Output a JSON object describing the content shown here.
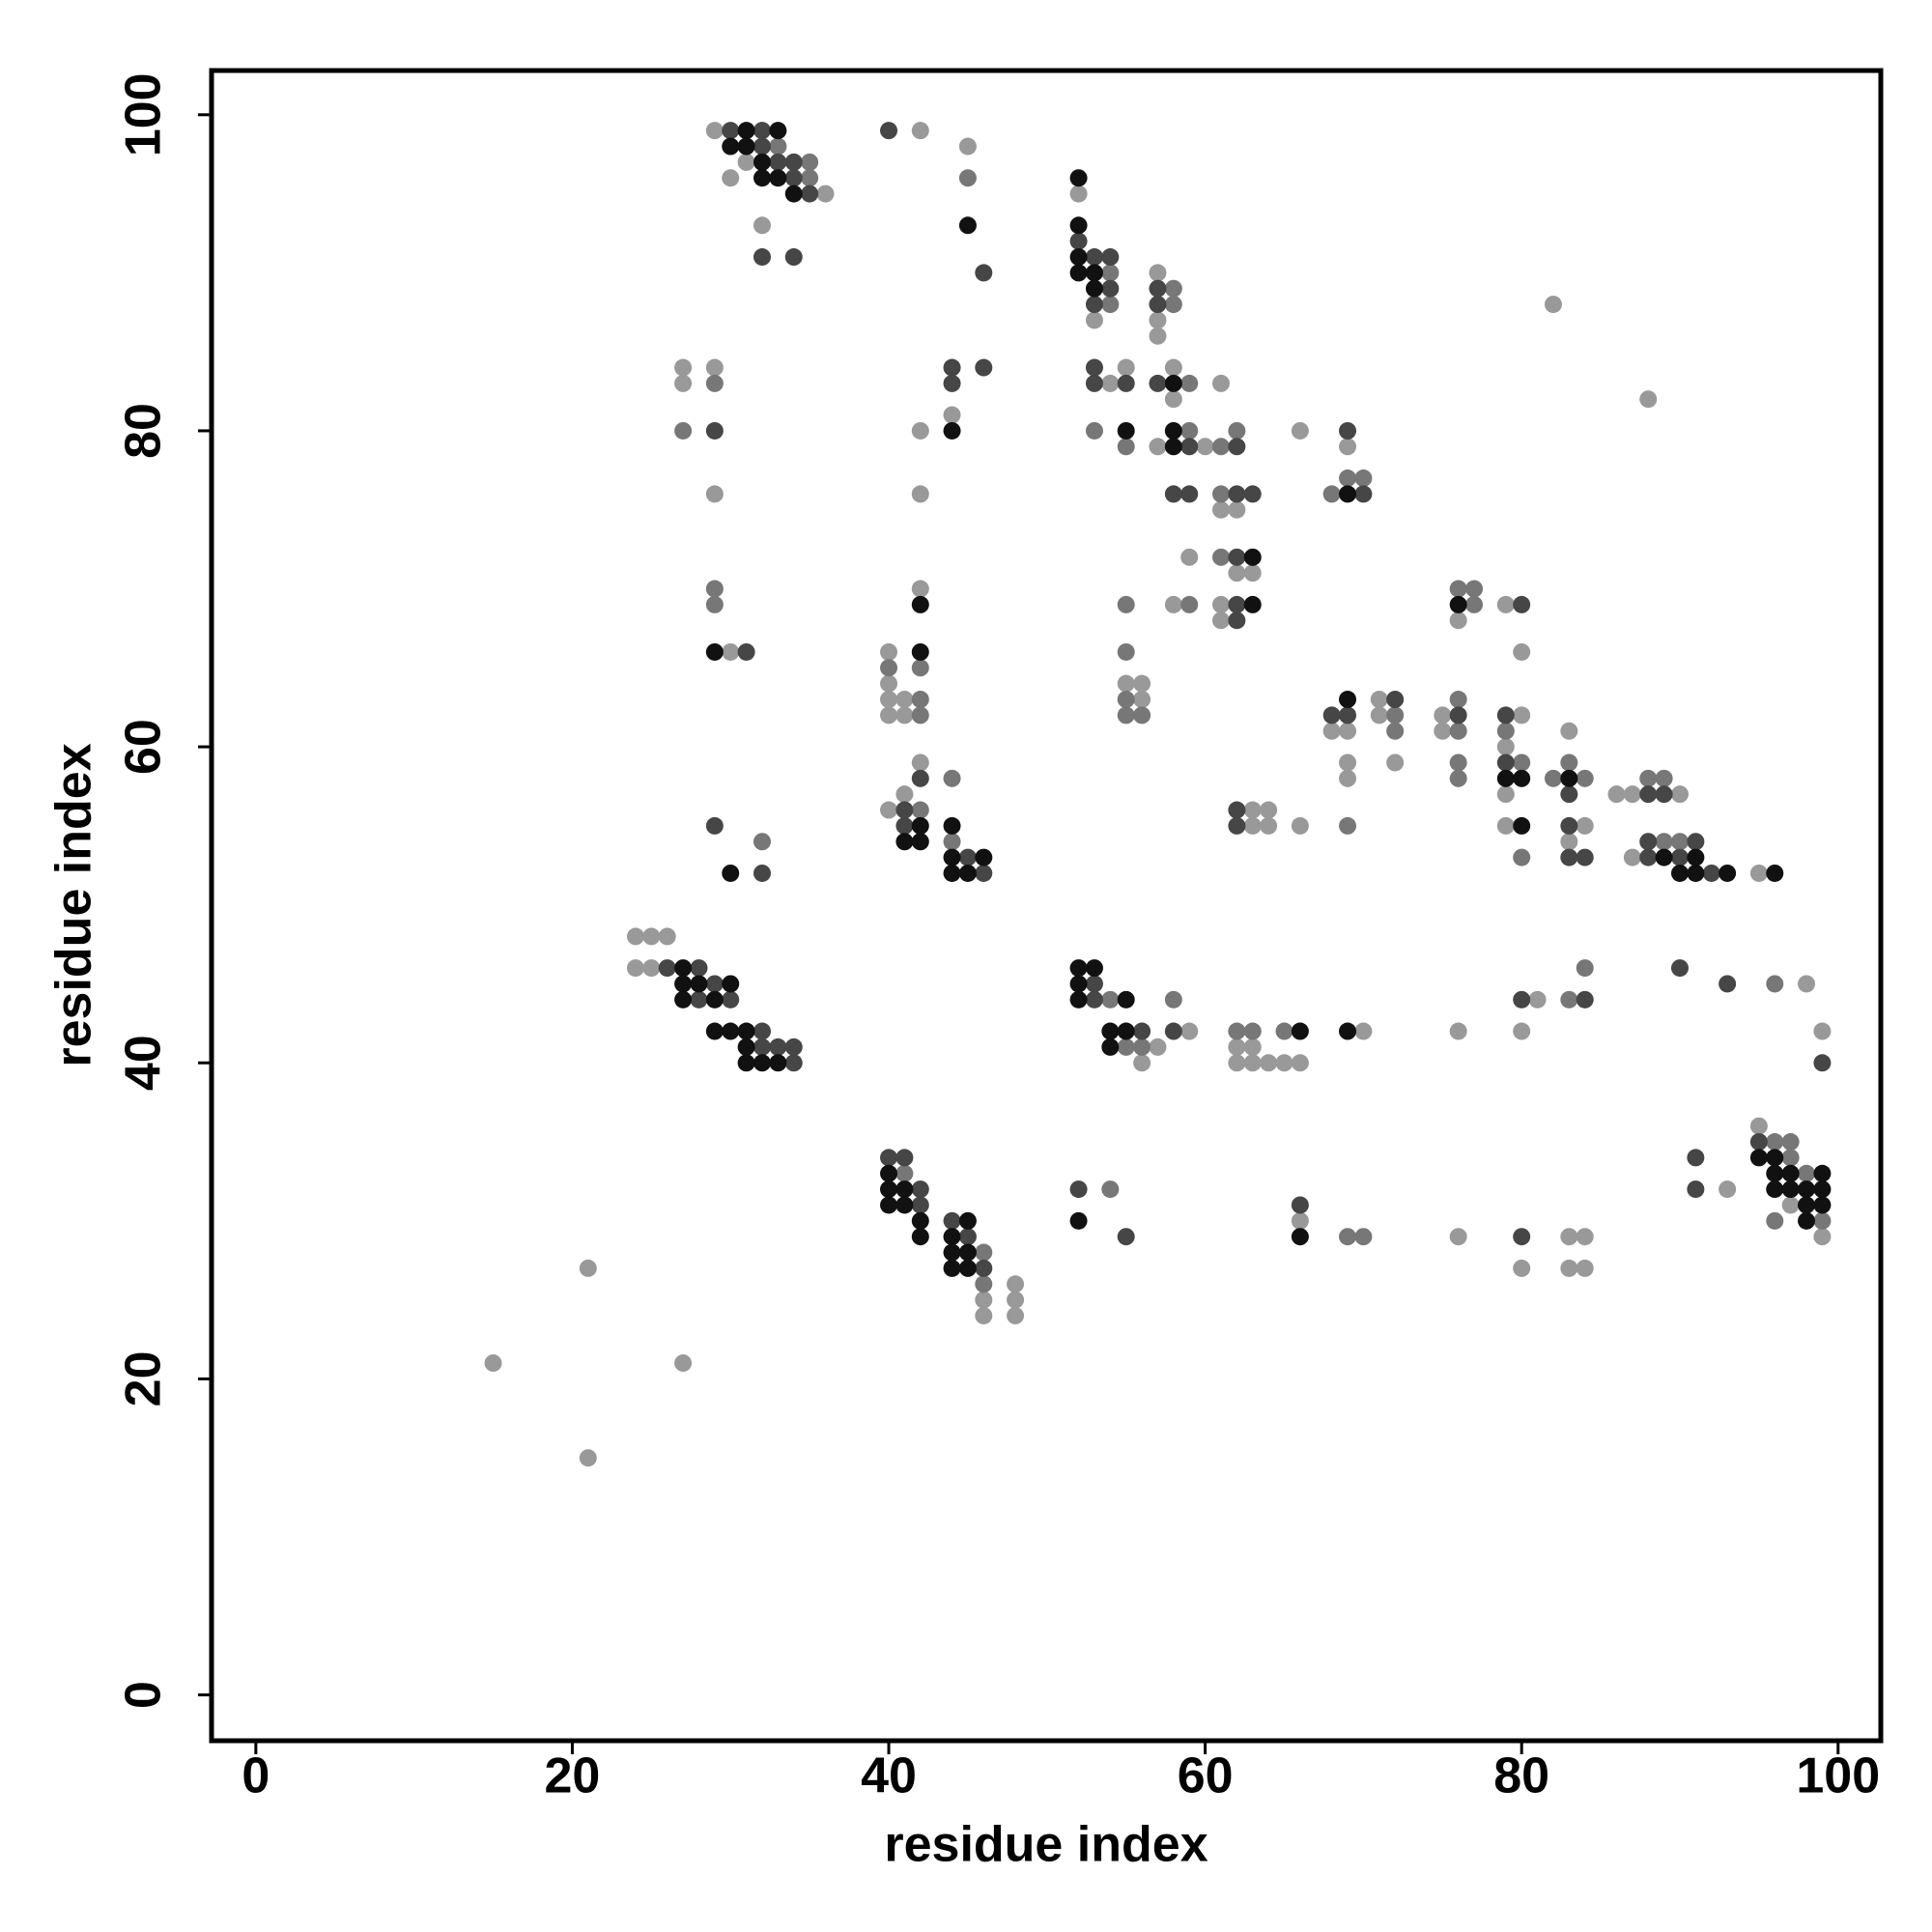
{
  "chart_data": {
    "type": "scatter",
    "xlabel": "residue index",
    "ylabel": "residue index",
    "xlim": [
      -2.8,
      102.7
    ],
    "ylim": [
      -2.9,
      102.8
    ],
    "xticks": [
      0,
      20,
      40,
      60,
      80,
      100
    ],
    "yticks": [
      0,
      20,
      40,
      60,
      80,
      100
    ],
    "series": [
      {
        "color": "#999999",
        "x": [
          29,
          30,
          31,
          36,
          32,
          42,
          45,
          52,
          53,
          57,
          57,
          57,
          54,
          55,
          58,
          58,
          57,
          60,
          61,
          61,
          62,
          59,
          62,
          63,
          58,
          61,
          61,
          66,
          69,
          82,
          88,
          44,
          42,
          42,
          27,
          29,
          27,
          29,
          30,
          42,
          40,
          40,
          40,
          41,
          40,
          41,
          42,
          40,
          41,
          55,
          56,
          56,
          63,
          64,
          63,
          64,
          66,
          68,
          69,
          69,
          69,
          71,
          71,
          72,
          75,
          75,
          76,
          79,
          80,
          80,
          79,
          79,
          79,
          83,
          84,
          83,
          86,
          87,
          90,
          87,
          95,
          24,
          25,
          26,
          24,
          25,
          57,
          56,
          59,
          62,
          63,
          62,
          63,
          64,
          65,
          66,
          70,
          76,
          81,
          80,
          98,
          99,
          48,
          46,
          48,
          46,
          48,
          66,
          76,
          80,
          83,
          84,
          83,
          84,
          93,
          95,
          97,
          99,
          15,
          21,
          27,
          21
        ],
        "values": [
          99,
          96,
          97,
          95,
          93,
          99,
          98,
          95,
          87,
          90,
          87,
          86,
          83,
          84,
          84,
          82,
          79,
          79,
          83,
          75,
          75,
          72,
          71,
          71,
          69,
          69,
          68,
          80,
          79,
          88,
          82,
          81,
          80,
          76,
          84,
          84,
          83,
          76,
          66,
          70,
          66,
          64,
          63,
          63,
          62,
          62,
          59,
          56,
          57,
          64,
          64,
          63,
          56,
          56,
          55,
          55,
          55,
          61,
          61,
          59,
          58,
          63,
          62,
          59,
          62,
          61,
          68,
          69,
          66,
          62,
          60,
          57,
          55,
          61,
          55,
          54,
          57,
          57,
          57,
          53,
          52,
          48,
          48,
          48,
          46,
          46,
          41,
          40,
          42,
          41,
          41,
          40,
          40,
          40,
          40,
          40,
          42,
          42,
          44,
          42,
          45,
          42,
          26,
          25,
          25,
          24,
          24,
          30,
          29,
          27,
          29,
          29,
          27,
          27,
          32,
          36,
          31,
          29,
          21,
          27,
          21,
          15
        ]
      },
      {
        "color": "#777777",
        "x": [
          33,
          35,
          35,
          45,
          54,
          54,
          58,
          58,
          53,
          55,
          59,
          59,
          61,
          62,
          61,
          61,
          59,
          68,
          69,
          70,
          29,
          27,
          29,
          29,
          42,
          40,
          42,
          42,
          42,
          44,
          44,
          32,
          55,
          55,
          55,
          55,
          56,
          69,
          72,
          72,
          76,
          76,
          76,
          76,
          76,
          77,
          77,
          79,
          80,
          80,
          82,
          84,
          83,
          88,
          89,
          89,
          90,
          54,
          55,
          56,
          58,
          62,
          63,
          65,
          83,
          84,
          96,
          41,
          46,
          46,
          54,
          69,
          70,
          96,
          97,
          97,
          98,
          96,
          99
        ],
        "values": [
          98,
          97,
          96,
          96,
          90,
          88,
          89,
          88,
          80,
          79,
          83,
          80,
          79,
          80,
          76,
          72,
          69,
          76,
          77,
          77,
          83,
          80,
          70,
          69,
          65,
          65,
          63,
          62,
          56,
          58,
          54,
          54,
          69,
          66,
          63,
          62,
          62,
          55,
          62,
          61,
          63,
          61,
          59,
          58,
          70,
          70,
          69,
          61,
          59,
          53,
          58,
          58,
          59,
          58,
          58,
          54,
          54,
          44,
          41,
          41,
          44,
          42,
          42,
          42,
          44,
          46,
          45,
          33,
          28,
          26,
          32,
          29,
          29,
          35,
          35,
          34,
          33,
          30,
          30
        ]
      },
      {
        "color": "#464646",
        "x": [
          30,
          32,
          32,
          33,
          34,
          34,
          35,
          32,
          34,
          40,
          46,
          52,
          53,
          54,
          54,
          53,
          57,
          57,
          53,
          53,
          55,
          57,
          59,
          62,
          58,
          59,
          62,
          63,
          62,
          62,
          62,
          70,
          69,
          44,
          44,
          46,
          29,
          31,
          42,
          41,
          41,
          45,
          46,
          29,
          32,
          62,
          62,
          68,
          69,
          72,
          76,
          79,
          79,
          80,
          83,
          83,
          83,
          84,
          88,
          89,
          88,
          88,
          90,
          91,
          92,
          26,
          28,
          29,
          28,
          30,
          32,
          32,
          33,
          34,
          34,
          53,
          53,
          56,
          58,
          80,
          84,
          90,
          93,
          99,
          40,
          41,
          42,
          42,
          44,
          45,
          46,
          52,
          55,
          66,
          80,
          91,
          91,
          95
        ],
        "values": [
          99,
          99,
          98,
          97,
          97,
          96,
          95,
          91,
          91,
          99,
          90,
          92,
          91,
          91,
          89,
          88,
          89,
          88,
          84,
          83,
          83,
          83,
          79,
          79,
          76,
          76,
          76,
          76,
          72,
          69,
          68,
          76,
          80,
          84,
          83,
          84,
          80,
          66,
          58,
          56,
          55,
          53,
          52,
          55,
          52,
          56,
          55,
          62,
          62,
          63,
          62,
          62,
          59,
          69,
          57,
          55,
          53,
          53,
          57,
          57,
          54,
          53,
          53,
          54,
          52,
          46,
          46,
          45,
          44,
          44,
          42,
          41,
          41,
          41,
          40,
          45,
          44,
          42,
          42,
          44,
          44,
          46,
          45,
          40,
          34,
          34,
          32,
          31,
          30,
          29,
          27,
          32,
          29,
          31,
          29,
          34,
          32,
          35
        ]
      },
      {
        "color": "#111111",
        "x": [
          31,
          33,
          30,
          31,
          32,
          32,
          33,
          34,
          45,
          52,
          52,
          52,
          52,
          53,
          53,
          55,
          58,
          58,
          58,
          63,
          63,
          69,
          44,
          29,
          42,
          42,
          42,
          41,
          42,
          44,
          44,
          46,
          44,
          45,
          30,
          69,
          76,
          79,
          80,
          80,
          83,
          89,
          90,
          91,
          91,
          93,
          96,
          27,
          27,
          28,
          30,
          27,
          29,
          29,
          30,
          31,
          31,
          31,
          32,
          33,
          52,
          53,
          52,
          52,
          55,
          54,
          55,
          54,
          66,
          69,
          40,
          40,
          41,
          40,
          41,
          42,
          42,
          45,
          44,
          44,
          45,
          44,
          45,
          52,
          66,
          95,
          96,
          96,
          97,
          99,
          96,
          97,
          98,
          99,
          98,
          99,
          98
        ],
        "values": [
          99,
          99,
          98,
          98,
          97,
          96,
          96,
          95,
          93,
          96,
          93,
          91,
          90,
          90,
          89,
          80,
          83,
          80,
          79,
          72,
          69,
          76,
          80,
          66,
          69,
          66,
          55,
          54,
          54,
          55,
          53,
          53,
          52,
          52,
          52,
          63,
          69,
          58,
          58,
          55,
          58,
          53,
          52,
          52,
          53,
          52,
          52,
          46,
          45,
          45,
          45,
          44,
          44,
          42,
          42,
          42,
          41,
          40,
          40,
          40,
          46,
          46,
          45,
          44,
          44,
          42,
          42,
          41,
          42,
          42,
          33,
          32,
          32,
          31,
          31,
          30,
          29,
          30,
          29,
          28,
          28,
          27,
          27,
          30,
          29,
          34,
          34,
          33,
          33,
          33,
          32,
          32,
          32,
          32,
          31,
          31,
          30
        ]
      }
    ]
  }
}
